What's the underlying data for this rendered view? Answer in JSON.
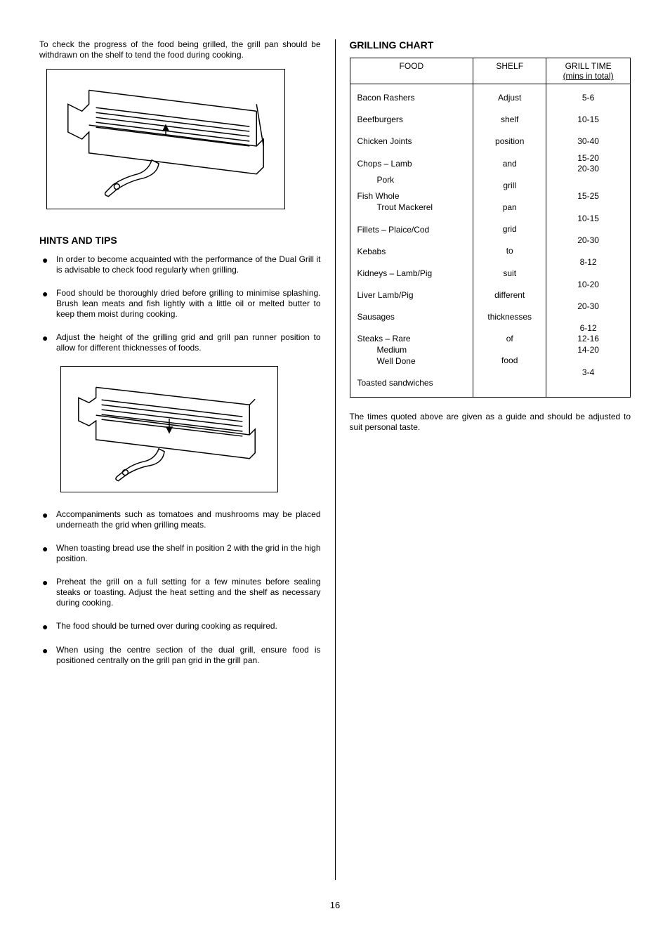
{
  "intro_text": "To check the progress of the food being grilled, the grill pan should be withdrawn on the shelf to tend the food during cooking.",
  "hints_title": "HINTS AND TIPS",
  "tips_group1": [
    "In order to become acquainted with the performance of the Dual Grill it is advisable to check food regularly when grilling.",
    "Food should be thoroughly dried before grilling to minimise splashing.  Brush lean meats and fish lightly with a little oil or melted butter to keep them moist during cooking.",
    "Adjust the height of the grilling grid and grill pan runner position to allow for different thicknesses of foods."
  ],
  "tips_group2": [
    "Accompaniments such as tomatoes and mushrooms may be placed underneath the grid when grilling meats.",
    "When toasting bread use the shelf in position 2 with the grid in the high position.",
    "Preheat the grill on a full setting for a few minutes before sealing steaks or toasting.  Adjust the heat setting and the shelf as necessary during cooking.",
    "The food should be turned over during cooking as required.",
    "When using the centre section of the dual grill, ensure food is positioned centrally on the grill pan grid in the grill pan."
  ],
  "grilling_chart_title": "GRILLING CHART",
  "chart_headers": {
    "food": "FOOD",
    "shelf": "SHELF",
    "time": "GRILL TIME",
    "time_sub": "(mins in total)"
  },
  "chart_rows": {
    "food_col": [
      {
        "text": "Bacon Rashers",
        "indent": false
      },
      {
        "text": "Beefburgers",
        "indent": false
      },
      {
        "text": "Chicken Joints",
        "indent": false
      },
      {
        "text": "Chops – Lamb",
        "indent": false
      },
      {
        "text": "Pork",
        "indent": true
      },
      {
        "text": "Fish Whole",
        "indent": false
      },
      {
        "text": "Trout Mackerel",
        "indent": true
      },
      {
        "text": "Fillets – Plaice/Cod",
        "indent": false
      },
      {
        "text": "Kebabs",
        "indent": false
      },
      {
        "text": "Kidneys – Lamb/Pig",
        "indent": false
      },
      {
        "text": "Liver Lamb/Pig",
        "indent": false
      },
      {
        "text": "Sausages",
        "indent": false
      },
      {
        "text": "Steaks – Rare",
        "indent": false
      },
      {
        "text": "Medium",
        "indent": true
      },
      {
        "text": "Well Done",
        "indent": true
      },
      {
        "text": "Toasted sandwiches",
        "indent": false
      }
    ],
    "shelf_col": [
      "Adjust",
      "shelf",
      "position",
      "and",
      "grill",
      "pan",
      "grid",
      "to",
      "suit",
      "different",
      "thicknesses",
      "of",
      "food"
    ],
    "time_col": [
      "5-6",
      "10-15",
      "30-40",
      "15-20",
      "20-30",
      "",
      "15-25",
      "10-15",
      "20-30",
      "8-12",
      "10-20",
      "20-30",
      "6-12",
      "12-16",
      "14-20",
      "3-4"
    ]
  },
  "chart_note": "The times quoted above are given as a guide and should be adjusted to suit personal taste.",
  "page_number": "16",
  "style": {
    "body_font_size": 12,
    "heading_font_size": 14,
    "text_color": "#000000",
    "bg_color": "#ffffff",
    "border_color": "#000000"
  }
}
